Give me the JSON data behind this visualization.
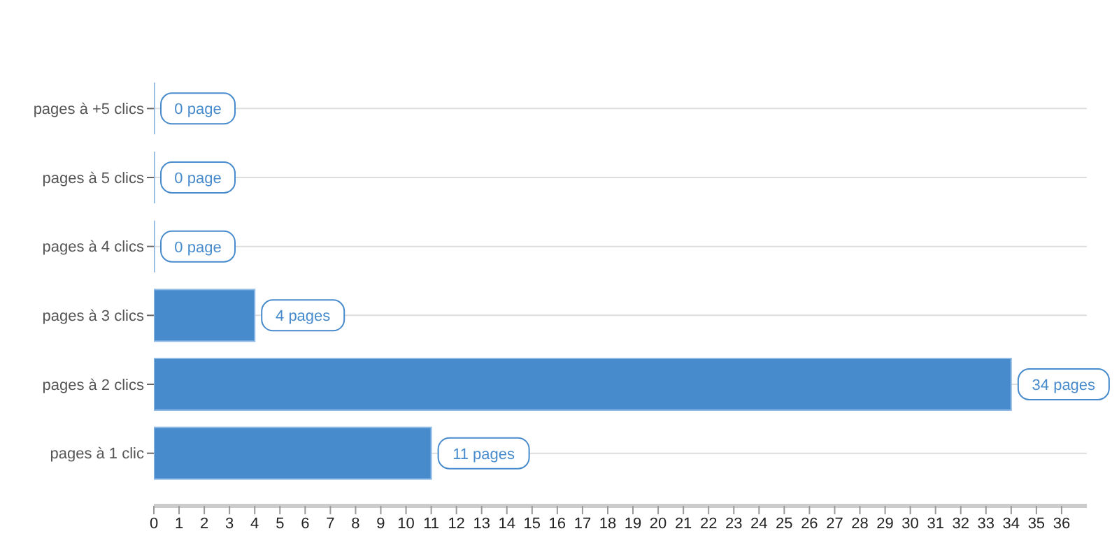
{
  "chart_data": {
    "type": "bar",
    "orientation": "horizontal",
    "categories": [
      "pages à +5 clics",
      "pages à 5 clics",
      "pages à 4 clics",
      "pages à 3 clics",
      "pages à 2 clics",
      "pages à 1 clic"
    ],
    "values": [
      0,
      0,
      0,
      4,
      34,
      11
    ],
    "value_labels": [
      "0 page",
      "0 page",
      "0 page",
      "4 pages",
      "34 pages",
      "11 pages"
    ],
    "color": "#478bcc",
    "xlim": [
      0,
      37
    ],
    "xticks": [
      0,
      1,
      2,
      3,
      4,
      5,
      6,
      7,
      8,
      9,
      10,
      11,
      12,
      13,
      14,
      15,
      16,
      17,
      18,
      19,
      20,
      21,
      22,
      23,
      24,
      25,
      26,
      27,
      28,
      29,
      30,
      31,
      32,
      33,
      34,
      35,
      36
    ],
    "grid": "y"
  }
}
